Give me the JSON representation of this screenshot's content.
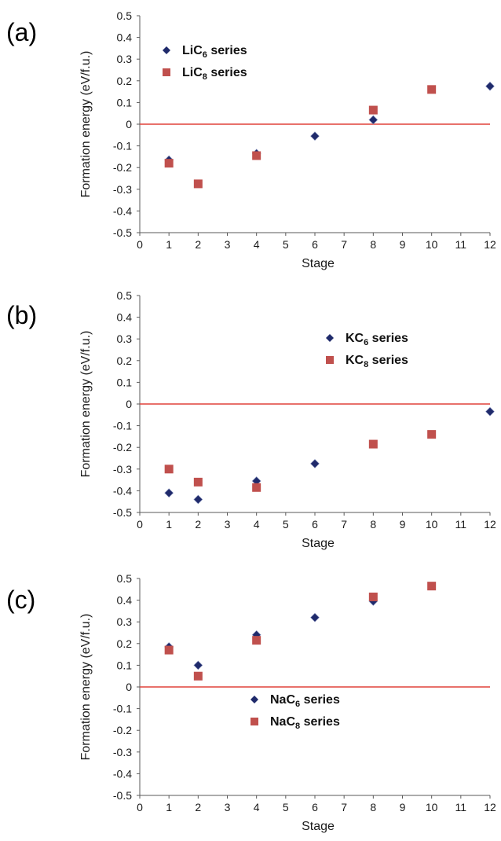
{
  "figure": {
    "chart_data": [
      {
        "type": "scatter",
        "panel_label": "(a)",
        "xlabel": "Stage",
        "ylabel": "Formation energy (eV/f.u.)",
        "xlim": [
          0,
          12
        ],
        "ylim": [
          -0.5,
          0.5
        ],
        "x_ticks": [
          "0",
          "1",
          "2",
          "3",
          "4",
          "5",
          "6",
          "7",
          "8",
          "9",
          "10",
          "11",
          "12"
        ],
        "y_ticks": [
          "0.5",
          "0.4",
          "0.3",
          "0.2",
          "0.1",
          "0",
          "-0.1",
          "-0.2",
          "-0.3",
          "-0.4",
          "-0.5"
        ],
        "reference_line_y": 0,
        "legend_position": "top-left",
        "series": [
          {
            "legend_base": "LiC",
            "legend_sub": "6",
            "legend_tail": " series",
            "marker": "diamond",
            "color": "#1f2a6b",
            "x": [
              1,
              4,
              6,
              8,
              12
            ],
            "y": [
              -0.165,
              -0.135,
              -0.055,
              0.02,
              0.175
            ]
          },
          {
            "legend_base": "LiC",
            "legend_sub": "8",
            "legend_tail": " series",
            "marker": "square",
            "color": "#c0504d",
            "x": [
              1,
              2,
              4,
              8,
              10
            ],
            "y": [
              -0.18,
              -0.275,
              -0.145,
              0.065,
              0.16
            ]
          }
        ]
      },
      {
        "type": "scatter",
        "panel_label": "(b)",
        "xlabel": "Stage",
        "ylabel": "Formation energy (eV/f.u.)",
        "xlim": [
          0,
          12
        ],
        "ylim": [
          -0.5,
          0.5
        ],
        "x_ticks": [
          "0",
          "1",
          "2",
          "3",
          "4",
          "5",
          "6",
          "7",
          "8",
          "9",
          "10",
          "11",
          "12"
        ],
        "y_ticks": [
          "0.5",
          "0.4",
          "0.3",
          "0.2",
          "0.1",
          "0",
          "-0.1",
          "-0.2",
          "-0.3",
          "-0.4",
          "-0.5"
        ],
        "reference_line_y": 0,
        "legend_position": "top-center",
        "series": [
          {
            "legend_base": "KC",
            "legend_sub": "6",
            "legend_tail": " series",
            "marker": "diamond",
            "color": "#1f2a6b",
            "x": [
              1,
              2,
              4,
              6,
              12
            ],
            "y": [
              -0.41,
              -0.44,
              -0.355,
              -0.275,
              -0.035
            ]
          },
          {
            "legend_base": "KC",
            "legend_sub": "8",
            "legend_tail": " series",
            "marker": "square",
            "color": "#c0504d",
            "x": [
              1,
              2,
              4,
              8,
              10
            ],
            "y": [
              -0.3,
              -0.36,
              -0.385,
              -0.185,
              -0.14
            ]
          }
        ]
      },
      {
        "type": "scatter",
        "panel_label": "(c)",
        "xlabel": "Stage",
        "ylabel": "Formation energy (eV/f.u.)",
        "xlim": [
          0,
          12
        ],
        "ylim": [
          -0.5,
          0.5
        ],
        "x_ticks": [
          "0",
          "1",
          "2",
          "3",
          "4",
          "5",
          "6",
          "7",
          "8",
          "9",
          "10",
          "11",
          "12"
        ],
        "y_ticks": [
          "0.5",
          "0.4",
          "0.3",
          "0.2",
          "0.1",
          "0",
          "-0.1",
          "-0.2",
          "-0.3",
          "-0.4",
          "-0.5"
        ],
        "reference_line_y": 0,
        "legend_position": "center",
        "series": [
          {
            "legend_base": "NaC",
            "legend_sub": "6",
            "legend_tail": " series",
            "marker": "diamond",
            "color": "#1f2a6b",
            "x": [
              1,
              2,
              4,
              6,
              8
            ],
            "y": [
              0.185,
              0.1,
              0.24,
              0.32,
              0.395
            ]
          },
          {
            "legend_base": "NaC",
            "legend_sub": "8",
            "legend_tail": " series",
            "marker": "square",
            "color": "#c0504d",
            "x": [
              1,
              2,
              4,
              8,
              10
            ],
            "y": [
              0.17,
              0.05,
              0.215,
              0.415,
              0.465
            ]
          }
        ]
      }
    ]
  },
  "styles": {
    "zero_line_color": "#e0423a",
    "axis_color": "#595959"
  }
}
